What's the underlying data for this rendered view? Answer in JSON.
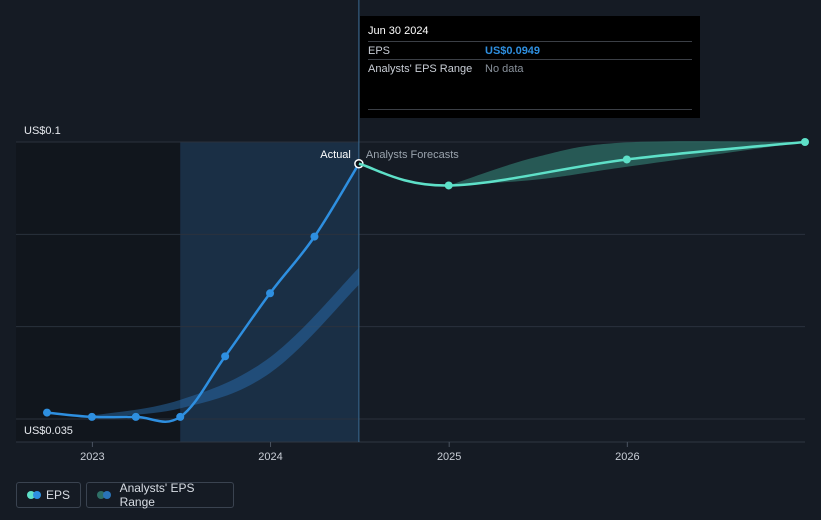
{
  "colors": {
    "background": "#151b24",
    "actual_line": "#2e8fe0",
    "forecast_line": "#5ee0c8",
    "range_fill": "#2a74b8",
    "forecast_band": "#2e6f66",
    "highlight_band": "#1a2f45",
    "past_band": "#11161d",
    "grid": "#2a323d"
  },
  "chart_data": {
    "type": "line",
    "title": "",
    "xlabel": "",
    "ylabel": "",
    "y_axis_labels": [
      "US$0.1",
      "US$0.035"
    ],
    "x_tick_labels": [
      "2023",
      "2024",
      "2025",
      "2026"
    ],
    "ylim": [
      0.035,
      0.1
    ],
    "xlim": [
      "2022-09-30",
      "2026-12-31"
    ],
    "annotations": {
      "actual": "Actual",
      "forecast": "Analysts Forecasts"
    },
    "series": [
      {
        "name": "EPS",
        "kind": "actual",
        "points": [
          {
            "x": "2022-09-30",
            "y": 0.0365
          },
          {
            "x": "2022-12-31",
            "y": 0.0355
          },
          {
            "x": "2023-03-31",
            "y": 0.0355
          },
          {
            "x": "2023-06-30",
            "y": 0.0355
          },
          {
            "x": "2023-09-30",
            "y": 0.0497
          },
          {
            "x": "2023-12-31",
            "y": 0.0645
          },
          {
            "x": "2024-03-31",
            "y": 0.0778
          },
          {
            "x": "2024-06-30",
            "y": 0.0949
          }
        ]
      },
      {
        "name": "EPS",
        "kind": "forecast",
        "points": [
          {
            "x": "2024-06-30",
            "y": 0.0949
          },
          {
            "x": "2024-12-31",
            "y": 0.0898
          },
          {
            "x": "2025-12-31",
            "y": 0.0959
          },
          {
            "x": "2026-12-31",
            "y": 0.1
          }
        ]
      }
    ],
    "range_series": [
      {
        "name": "Analysts' EPS Range",
        "kind": "past",
        "upper": [
          {
            "x": "2022-12-31",
            "y": 0.0358
          },
          {
            "x": "2023-06-30",
            "y": 0.0395
          },
          {
            "x": "2023-12-31",
            "y": 0.0495
          },
          {
            "x": "2024-06-30",
            "y": 0.0705
          }
        ],
        "lower": [
          {
            "x": "2022-12-31",
            "y": 0.0355
          },
          {
            "x": "2023-06-30",
            "y": 0.0375
          },
          {
            "x": "2023-12-31",
            "y": 0.0458
          },
          {
            "x": "2024-06-30",
            "y": 0.0665
          }
        ]
      },
      {
        "name": "Analysts' EPS Range",
        "kind": "forecast",
        "upper": [
          {
            "x": "2024-12-31",
            "y": 0.0898
          },
          {
            "x": "2025-06-30",
            "y": 0.0965
          },
          {
            "x": "2025-12-31",
            "y": 0.0999
          },
          {
            "x": "2026-12-31",
            "y": 0.1
          }
        ],
        "lower": [
          {
            "x": "2024-12-31",
            "y": 0.0898
          },
          {
            "x": "2025-06-30",
            "y": 0.0912
          },
          {
            "x": "2025-12-31",
            "y": 0.0942
          },
          {
            "x": "2026-12-31",
            "y": 0.1
          }
        ]
      }
    ],
    "highlight": {
      "from": "2023-06-30",
      "to": "2024-06-30"
    }
  },
  "tooltip": {
    "date": "Jun 30 2024",
    "rows": [
      {
        "key": "EPS",
        "value": "US$0.0949",
        "value_color": "#2e8fe0"
      },
      {
        "key": "Analysts' EPS Range",
        "value": "No data",
        "value_color": "#8a929c"
      }
    ]
  },
  "legend": {
    "eps_label": "EPS",
    "range_label": "Analysts' EPS Range"
  }
}
